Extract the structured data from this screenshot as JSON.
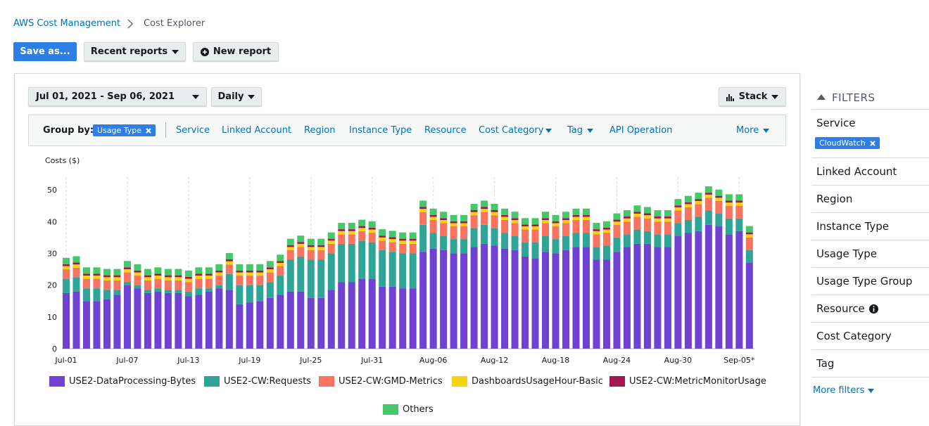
{
  "breadcrumb": {
    "parent": "AWS Cost Management",
    "current": "Cost Explorer"
  },
  "toolbar": {
    "save": "Save as...",
    "recent": "Recent reports",
    "new": "New report"
  },
  "controls": {
    "date_range": "Jul 01, 2021 - Sep 06, 2021",
    "granularity": "Daily",
    "chart_style": "Stack"
  },
  "group_by": {
    "label": "Group by:",
    "selected": "Usage Type",
    "options": [
      "Service",
      "Linked Account",
      "Region",
      "Instance Type",
      "Resource",
      "Cost Category",
      "Tag",
      "API Operation"
    ],
    "more": "More"
  },
  "filters": {
    "title": "FILTERS",
    "items": [
      "Service",
      "Linked Account",
      "Region",
      "Instance Type",
      "Usage Type",
      "Usage Type Group",
      "Resource",
      "Cost Category",
      "Tag"
    ],
    "service_chip": "CloudWatch",
    "more": "More filters"
  },
  "chart_data": {
    "type": "bar",
    "stacked": true,
    "ylabel": "Costs ($)",
    "categories": [
      "Jul-01",
      null,
      null,
      null,
      null,
      null,
      "Jul-07",
      null,
      null,
      null,
      null,
      null,
      "Jul-13",
      null,
      null,
      null,
      null,
      null,
      "Jul-19",
      null,
      null,
      null,
      null,
      null,
      "Jul-25",
      null,
      null,
      null,
      null,
      null,
      "Jul-31",
      null,
      null,
      null,
      null,
      null,
      "Aug-06",
      null,
      null,
      null,
      null,
      null,
      "Aug-12",
      null,
      null,
      null,
      null,
      null,
      "Aug-18",
      null,
      null,
      null,
      null,
      null,
      "Aug-24",
      null,
      null,
      null,
      null,
      null,
      "Aug-30",
      null,
      null,
      null,
      null,
      null,
      "Sep-05*",
      null
    ],
    "ylim": [
      0,
      54
    ],
    "yticks": [
      0,
      10,
      20,
      30,
      40,
      50
    ],
    "grid": "x",
    "series": [
      {
        "name": "USE2-DataProcessing-Bytes",
        "color": "#6f42d4",
        "values": [
          17.5,
          18,
          15,
          15,
          15.5,
          17,
          20,
          19,
          17.5,
          18,
          17.5,
          17.5,
          16.5,
          17,
          18,
          19,
          18.5,
          14,
          14.5,
          15,
          16,
          17,
          18,
          18,
          16,
          16,
          18.5,
          21,
          21,
          22,
          22,
          19.5,
          19.5,
          19,
          19,
          30.5,
          31.5,
          31,
          30,
          30,
          32,
          33,
          32.5,
          31.5,
          31,
          29,
          28.5,
          30.5,
          30,
          31,
          32,
          32,
          28,
          28,
          30.5,
          32,
          33,
          33,
          32,
          32,
          35.5,
          36.5,
          37,
          39,
          38.5,
          36,
          37,
          27
        ]
      },
      {
        "name": "USE2-CW:Requests",
        "color": "#2ea597",
        "values": [
          4.5,
          4.5,
          4,
          4,
          3,
          1.5,
          1,
          1,
          1,
          1,
          1,
          1,
          1.5,
          2,
          1,
          1,
          5,
          6,
          5.5,
          5,
          5,
          6,
          10,
          11,
          12,
          12,
          11.5,
          12,
          12,
          12,
          11.5,
          11.5,
          11,
          11,
          11,
          8.5,
          5,
          4.5,
          4.5,
          4.5,
          6,
          6,
          5.5,
          5,
          4.5,
          4.5,
          5,
          5,
          4.5,
          4.5,
          4.5,
          4.5,
          4,
          4.5,
          4.5,
          4,
          4.5,
          4,
          4,
          4,
          4,
          4,
          4.5,
          4.5,
          4,
          5,
          4,
          4
        ]
      },
      {
        "name": "USE2-CW:GMD-Metrics",
        "color": "#f9735e",
        "values": [
          3,
          3,
          3,
          3,
          3,
          3,
          3,
          3,
          3,
          3,
          3,
          3,
          3,
          3,
          3,
          3,
          3,
          3,
          3,
          3,
          3,
          3,
          3,
          3,
          3,
          3,
          3,
          3,
          3,
          3,
          3,
          3,
          3,
          3,
          3,
          4,
          4,
          4,
          4,
          4,
          4,
          4,
          4,
          4,
          4,
          4,
          4,
          4,
          4,
          4,
          4,
          4,
          4,
          4,
          4,
          4,
          4,
          4,
          4,
          4,
          4,
          4,
          4,
          4,
          4,
          4,
          4,
          4
        ]
      },
      {
        "name": "DashboardsUsageHour-Basic",
        "color": "#f5d40f",
        "values": [
          1,
          1,
          1,
          1,
          1,
          1,
          1,
          1,
          1,
          1,
          1,
          1,
          1,
          1,
          1,
          1,
          1,
          1,
          1,
          1,
          1,
          1,
          1,
          1,
          1,
          1,
          1,
          1,
          1,
          1,
          1,
          1,
          1,
          1,
          1,
          1,
          1,
          1,
          1,
          1,
          1,
          1,
          1,
          1,
          1,
          1,
          1,
          1,
          1,
          1,
          1,
          1,
          1,
          1,
          1,
          1,
          1,
          1,
          1,
          1,
          1,
          1,
          1,
          1,
          1,
          1,
          1,
          1
        ]
      },
      {
        "name": "USE2-CW:MetricMonitorUsage",
        "color": "#a3174f",
        "values": [
          0.6,
          0.6,
          0.6,
          0.6,
          0.6,
          0.6,
          0.6,
          0.6,
          0.6,
          0.6,
          0.6,
          0.6,
          0.6,
          0.6,
          0.6,
          0.6,
          0.6,
          0.6,
          0.6,
          0.6,
          0.6,
          0.6,
          0.6,
          0.6,
          0.6,
          0.6,
          0.6,
          0.6,
          0.6,
          0.6,
          0.6,
          0.6,
          0.6,
          0.6,
          0.6,
          0.6,
          0.6,
          0.6,
          0.6,
          0.6,
          0.6,
          0.6,
          0.6,
          0.6,
          0.6,
          0.6,
          0.6,
          0.6,
          0.6,
          0.6,
          0.6,
          0.6,
          0.6,
          0.6,
          0.6,
          0.6,
          0.6,
          0.6,
          0.6,
          0.6,
          0.6,
          0.6,
          0.6,
          0.6,
          0.6,
          0.6,
          0.6,
          0.6
        ]
      },
      {
        "name": "Others",
        "color": "#45c76a",
        "values": [
          2,
          2,
          2,
          2,
          2,
          2,
          2,
          2,
          2,
          2,
          2,
          2,
          2,
          2,
          2,
          2,
          2,
          2,
          2,
          2,
          2,
          2,
          2,
          2,
          2,
          2,
          2,
          2,
          2,
          2,
          2,
          2,
          2,
          2,
          2,
          2,
          2,
          2,
          2,
          2,
          2,
          2,
          2,
          2,
          2,
          2,
          2,
          2,
          2,
          2,
          2,
          2,
          2,
          2,
          2,
          2,
          2,
          2,
          2,
          2,
          2,
          2,
          2,
          2,
          2,
          2,
          2,
          2
        ]
      }
    ]
  }
}
